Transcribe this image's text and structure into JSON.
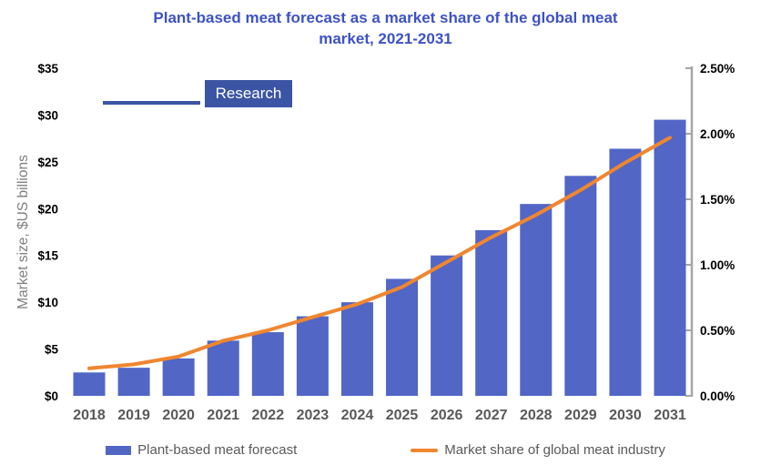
{
  "header": {
    "title_lines": [
      "Plant-based meat forecast as a market share of the global meat",
      "market, 2021-2031"
    ]
  },
  "logo": {
    "label": "Research"
  },
  "colors": {
    "bar": "#5266C6",
    "line": "#F0862F",
    "title": "#3D52C5",
    "logo_blue": "#3B54A4",
    "axis_tick_text": "#000000",
    "year_text": "#595959",
    "legend_text": "#595959",
    "y_axis_title_text": "#7F7F7F",
    "right_axis_line": "#A6A6A6"
  },
  "chart_data": {
    "type": "bar",
    "title": "Plant-based meat forecast as a market share of the global meat market, 2021-2031",
    "categories": [
      "2018",
      "2019",
      "2020",
      "2021",
      "2022",
      "2023",
      "2024",
      "2025",
      "2026",
      "2027",
      "2028",
      "2029",
      "2030",
      "2031"
    ],
    "series": [
      {
        "name": "Plant-based meat forecast",
        "type": "bar",
        "axis": "left",
        "values": [
          2.5,
          3.0,
          4.0,
          5.9,
          6.8,
          8.5,
          10.0,
          12.5,
          15.0,
          17.7,
          20.5,
          23.5,
          26.4,
          29.5
        ]
      },
      {
        "name": "Market share of global meat industry",
        "type": "line",
        "axis": "right",
        "values": [
          0.21,
          0.24,
          0.3,
          0.42,
          0.5,
          0.6,
          0.7,
          0.83,
          1.02,
          1.21,
          1.38,
          1.57,
          1.78,
          1.97
        ]
      }
    ],
    "left_axis": {
      "title": "Market size, $US billions",
      "tick_labels": [
        "$0",
        "$5",
        "$10",
        "$15",
        "$20",
        "$25",
        "$30",
        "$35"
      ],
      "min": 0,
      "max": 35
    },
    "right_axis": {
      "tick_labels": [
        "0.00%",
        "0.50%",
        "1.00%",
        "1.50%",
        "2.00%",
        "2.50%"
      ],
      "min": 0,
      "max": 2.5
    },
    "grid": false,
    "legend_position": "bottom"
  },
  "legend": {
    "bar_label": "Plant-based meat forecast",
    "line_label": "Market share of global meat industry"
  }
}
